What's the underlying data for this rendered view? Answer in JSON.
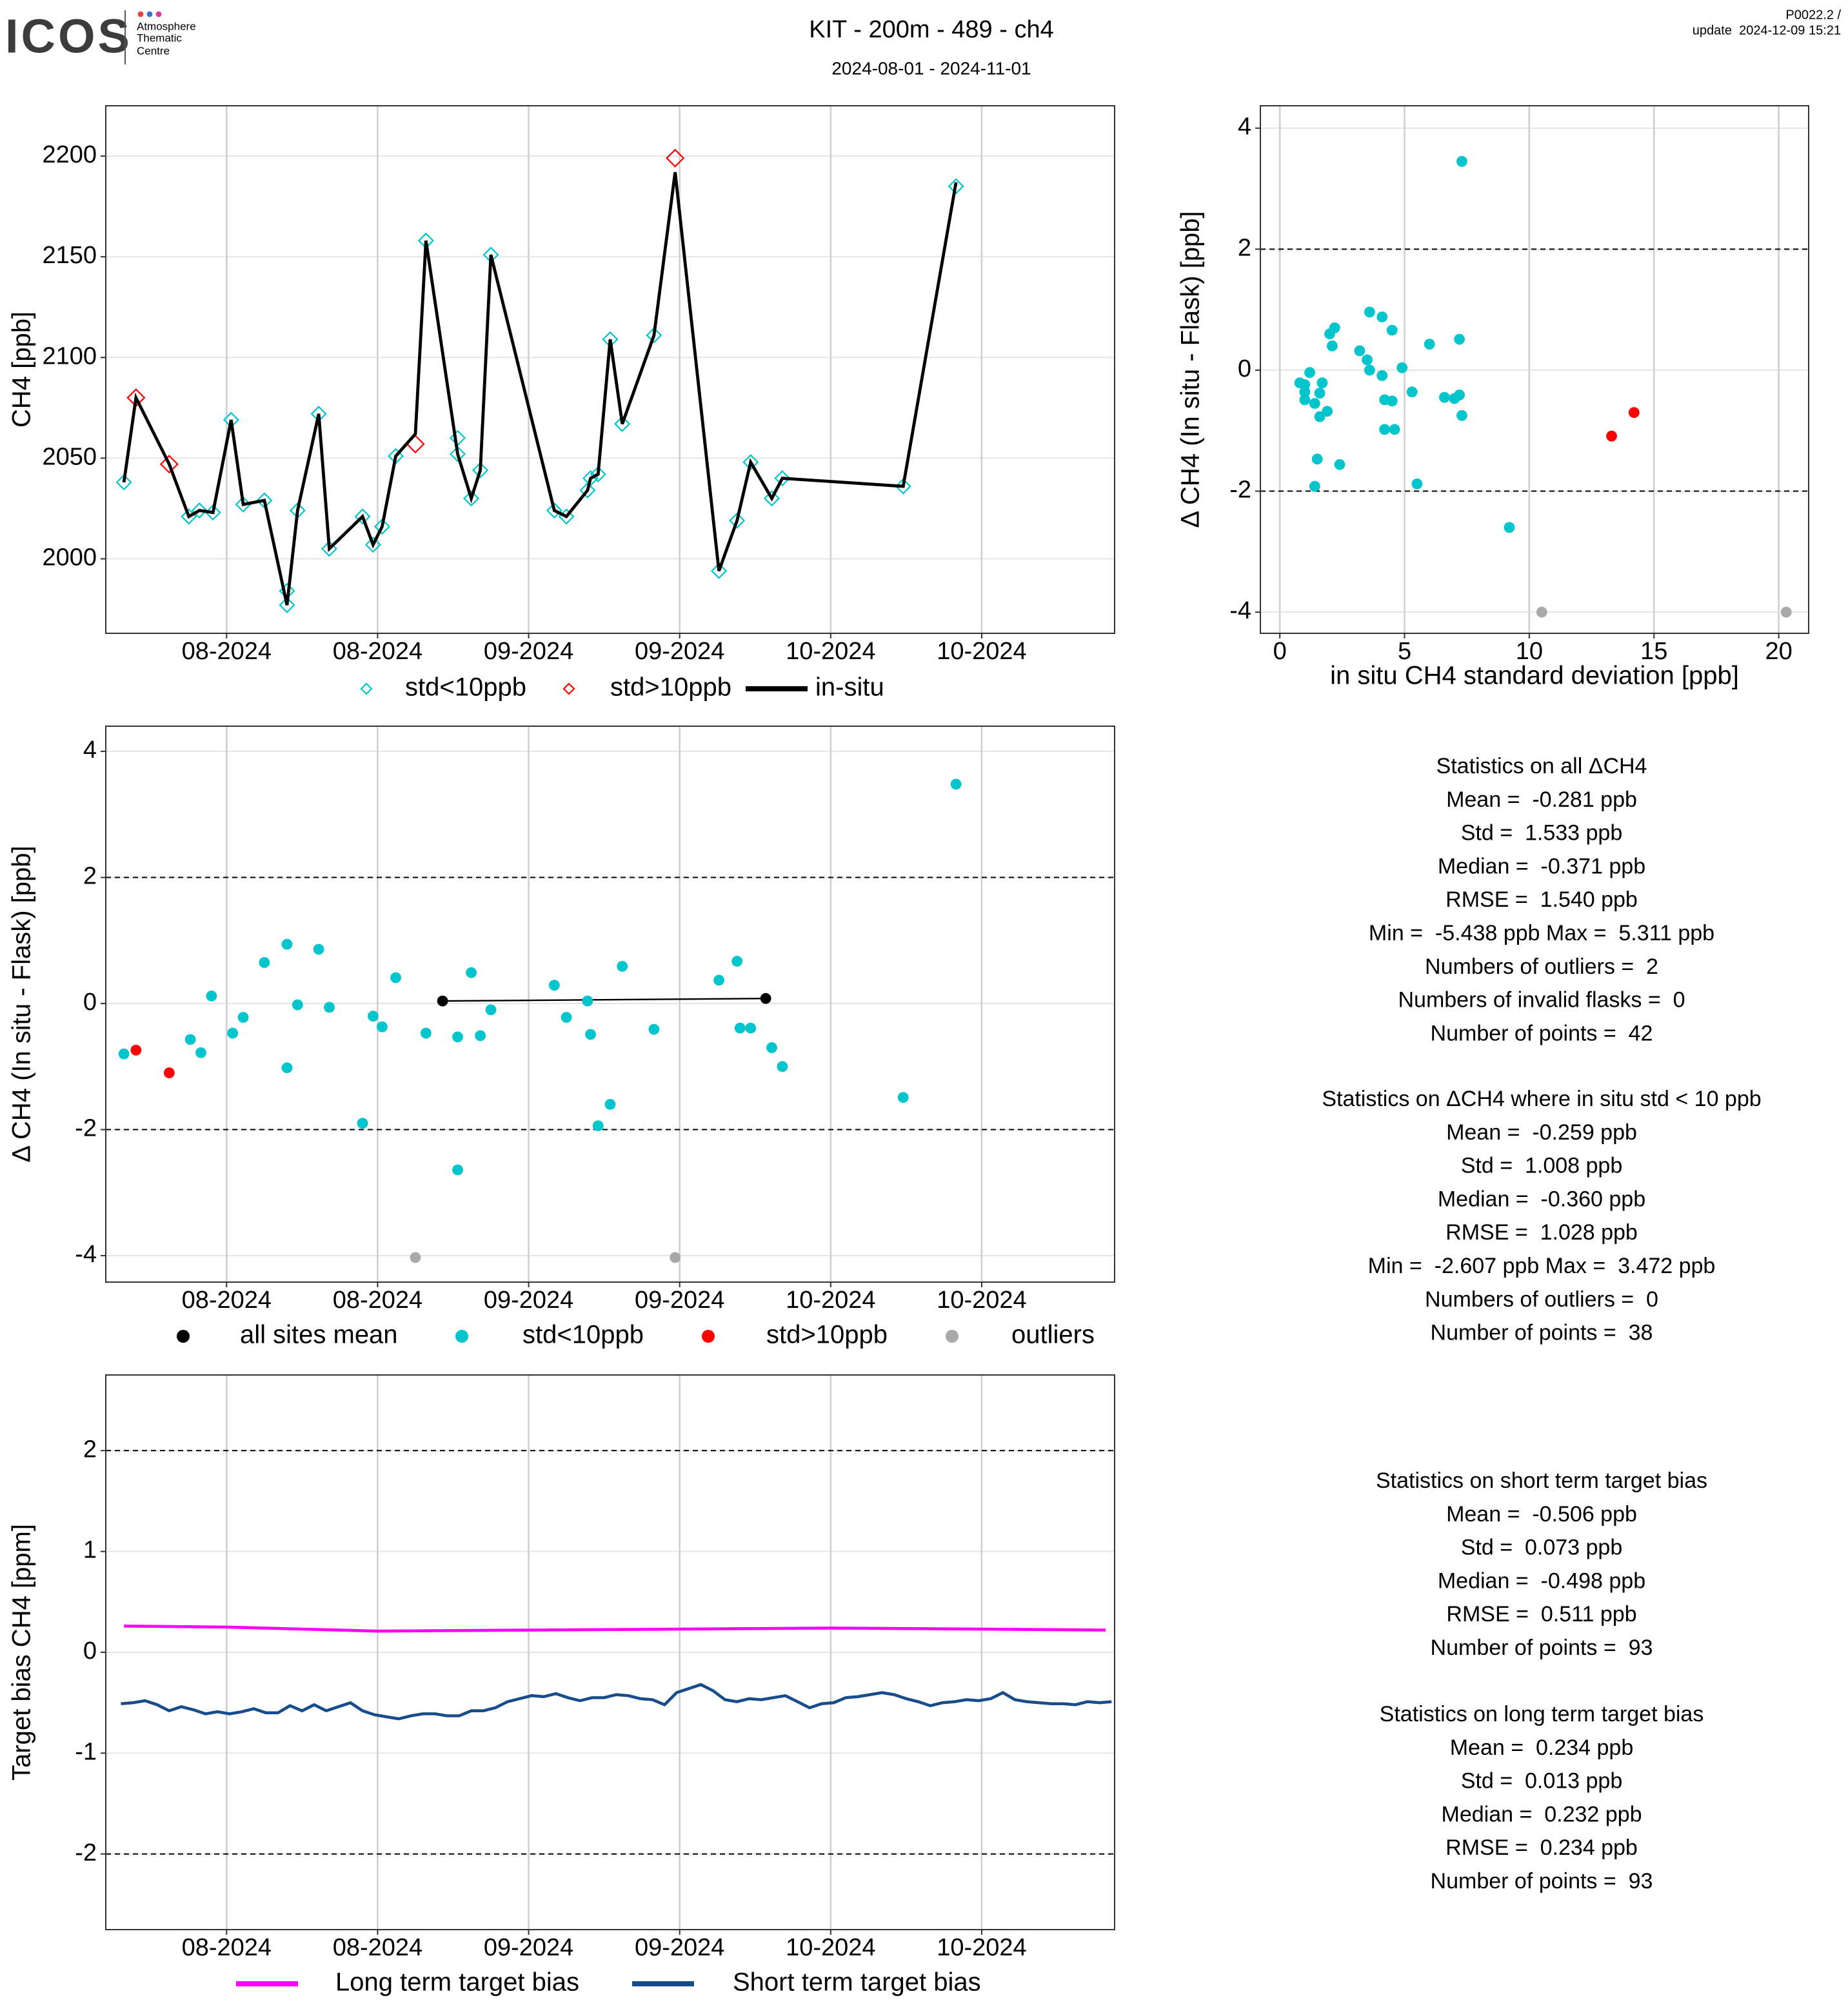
{
  "header": {
    "logo": "ICOS",
    "logo_caption": [
      "Atmosphere",
      "Thematic",
      "Centre"
    ],
    "title": "KIT - 200m - 489 - ch4",
    "subtitle": "2024-08-01 - 2024-11-01",
    "version": "P0022.2 /",
    "update": "update  2024-12-09 15:21"
  },
  "chart_data": [
    {
      "type": "line",
      "ylabel": "CH4 [ppb]",
      "xlim": [
        -0.8,
        5.88
      ],
      "ylim": [
        1963,
        2225
      ],
      "xticks": [
        {
          "value": 0,
          "label": "08-2024"
        },
        {
          "value": 1,
          "label": "08-2024"
        },
        {
          "value": 2,
          "label": "09-2024"
        },
        {
          "value": 3,
          "label": "09-2024"
        },
        {
          "value": 4,
          "label": "10-2024"
        },
        {
          "value": 5,
          "label": "10-2024"
        }
      ],
      "yticks": [
        2000,
        2050,
        2100,
        2150,
        2200
      ],
      "grid": true,
      "series": [
        {
          "name": "std<10ppb",
          "color": "#00c5cd",
          "mode": "diamonds",
          "x": [
            -0.68,
            -0.25,
            -0.18,
            -0.09,
            0.03,
            0.11,
            0.25,
            0.4,
            0.4,
            0.47,
            0.61,
            0.68,
            0.9,
            0.97,
            1.03,
            1.12,
            1.32,
            1.53,
            1.53,
            1.62,
            1.68,
            1.75,
            2.17,
            2.25,
            2.39,
            2.41,
            2.46,
            2.54,
            2.62,
            2.83,
            3.26,
            3.38,
            3.47,
            3.61,
            3.68,
            4.48,
            4.83
          ],
          "values": [
            2038,
            2021,
            2024,
            2023,
            2069,
            2027,
            2029,
            1984,
            1977,
            2024,
            2072,
            2005,
            2021,
            2007,
            2016,
            2051,
            2158,
            2060,
            2052,
            2030,
            2044,
            2151,
            2024,
            2021,
            2034,
            2040,
            2042,
            2109,
            2067,
            2111,
            1994,
            2019,
            2048,
            2030,
            2040,
            2036,
            2185
          ]
        },
        {
          "name": "std>10ppb",
          "color": "#ff0000",
          "mode": "diamonds",
          "x": [
            -0.6,
            -0.38,
            1.25,
            2.97
          ],
          "values": [
            2080,
            2047,
            2057,
            2199
          ]
        },
        {
          "name": "in-situ",
          "color": "#000000",
          "mode": "lines",
          "x": [
            -0.68,
            -0.6,
            -0.38,
            -0.25,
            -0.18,
            -0.09,
            0.03,
            0.11,
            0.25,
            0.4,
            0.47,
            0.61,
            0.68,
            0.9,
            0.97,
            1.03,
            1.12,
            1.25,
            1.32,
            1.53,
            1.62,
            1.68,
            1.75,
            2.17,
            2.25,
            2.39,
            2.41,
            2.46,
            2.54,
            2.62,
            2.83,
            2.97,
            3.26,
            3.38,
            3.47,
            3.61,
            3.68,
            4.48,
            4.83
          ],
          "values": [
            2038,
            2080,
            2047,
            2021,
            2024,
            2023,
            2069,
            2027,
            2029,
            1977,
            2024,
            2072,
            2005,
            2021,
            2007,
            2016,
            2051,
            2062,
            2158,
            2052,
            2030,
            2044,
            2151,
            2024,
            2021,
            2034,
            2040,
            2042,
            2109,
            2067,
            2111,
            2192,
            1994,
            2019,
            2048,
            2030,
            2040,
            2036,
            2187
          ]
        }
      ]
    },
    {
      "type": "scatter",
      "ylabel": "Δ CH4 (In situ - Flask) [ppb]",
      "xlabel": "in situ CH4 standard deviation [ppb]",
      "xlim": [
        -0.78,
        21.2
      ],
      "ylim": [
        -4.35,
        4.37
      ],
      "xticks": [
        0,
        5,
        10,
        15,
        20
      ],
      "yticks": [
        -4,
        -2,
        0,
        2,
        4
      ],
      "grid": true,
      "hlines": [
        2,
        -2
      ],
      "series": [
        {
          "color": "#00c5cd",
          "mode": "points",
          "x": [
            7.3,
            3.6,
            4.1,
            4.5,
            2.2,
            2.0,
            2.1,
            3.2,
            3.5,
            3.6,
            4.9,
            6.0,
            7.2,
            1.2,
            0.8,
            1.0,
            1.7,
            1.0,
            1.6,
            1.0,
            1.4,
            1.9,
            1.6,
            4.1,
            4.2,
            4.5,
            5.3,
            6.6,
            7.0,
            7.2,
            7.3,
            4.2,
            4.6,
            1.5,
            2.4,
            5.5,
            1.4,
            9.2
          ],
          "values": [
            3.45,
            0.96,
            0.88,
            0.66,
            0.7,
            0.6,
            0.4,
            0.32,
            0.17,
            0,
            0.04,
            0.43,
            0.51,
            -0.04,
            -0.21,
            -0.24,
            -0.21,
            -0.36,
            -0.38,
            -0.49,
            -0.55,
            -0.68,
            -0.77,
            -0.09,
            -0.49,
            -0.51,
            -0.36,
            -0.45,
            -0.47,
            -0.41,
            -0.75,
            -0.98,
            -0.98,
            -1.47,
            -1.56,
            -1.88,
            -1.92,
            -2.6
          ]
        },
        {
          "color": "#ff0000",
          "mode": "points",
          "x": [
            13.3,
            14.2
          ],
          "values": [
            -1.09,
            -0.7
          ]
        },
        {
          "color": "#a9a9a9",
          "mode": "points",
          "x": [
            10.5,
            20.3
          ],
          "values": [
            -4.0,
            -4.0
          ]
        }
      ]
    },
    {
      "type": "scatter",
      "ylabel": "Δ CH4 (In situ - Flask) [ppb]",
      "xlim": [
        -0.8,
        5.88
      ],
      "ylim": [
        -4.42,
        4.4
      ],
      "xticks": [
        {
          "value": 0,
          "label": "08-2024"
        },
        {
          "value": 1,
          "label": "08-2024"
        },
        {
          "value": 2,
          "label": "09-2024"
        },
        {
          "value": 3,
          "label": "09-2024"
        },
        {
          "value": 4,
          "label": "10-2024"
        },
        {
          "value": 5,
          "label": "10-2024"
        }
      ],
      "yticks": [
        -4,
        -2,
        0,
        2,
        4
      ],
      "grid": true,
      "hlines": [
        2,
        -2
      ],
      "series": [
        {
          "name": "all sites mean",
          "color": "#000000",
          "mode": "lines+points",
          "x": [
            1.43,
            3.57
          ],
          "values": [
            0.04,
            0.08
          ]
        },
        {
          "name": "std<10ppb",
          "color": "#00c5cd",
          "mode": "points",
          "x": [
            -0.68,
            -0.24,
            -0.17,
            -0.1,
            0.04,
            0.11,
            0.25,
            0.4,
            0.4,
            0.47,
            0.61,
            0.68,
            0.9,
            0.97,
            1.03,
            1.12,
            1.32,
            1.53,
            1.53,
            1.62,
            1.68,
            1.75,
            2.17,
            2.25,
            2.39,
            2.41,
            2.46,
            2.54,
            2.62,
            2.83,
            3.26,
            3.38,
            3.4,
            3.47,
            3.61,
            3.68,
            4.48,
            4.83
          ],
          "values": [
            -0.8,
            -0.57,
            -0.78,
            0.12,
            -0.47,
            -0.22,
            0.65,
            0.94,
            -1.02,
            -0.02,
            0.86,
            -0.06,
            -1.9,
            -0.2,
            -0.37,
            0.41,
            -0.47,
            -0.53,
            -2.64,
            0.49,
            -0.51,
            -0.1,
            0.29,
            -0.22,
            0.04,
            -0.49,
            -1.94,
            -1.6,
            0.59,
            -0.41,
            0.37,
            0.67,
            -0.39,
            -0.39,
            -0.7,
            -1.0,
            -1.49,
            3.48
          ]
        },
        {
          "name": "std>10ppb",
          "color": "#ff0000",
          "mode": "points",
          "x": [
            -0.6,
            -0.38
          ],
          "values": [
            -0.74,
            -1.1
          ]
        },
        {
          "name": "outliers",
          "color": "#a9a9a9",
          "mode": "points",
          "x": [
            1.25,
            2.97
          ],
          "values": [
            -4.03,
            -4.03
          ]
        }
      ]
    },
    {
      "type": "line",
      "ylabel": "Target bias CH4 [ppm]",
      "xlim": [
        -0.8,
        5.88
      ],
      "ylim": [
        -2.75,
        2.75
      ],
      "xticks": [
        {
          "value": 0,
          "label": "08-2024"
        },
        {
          "value": 1,
          "label": "08-2024"
        },
        {
          "value": 2,
          "label": "09-2024"
        },
        {
          "value": 3,
          "label": "09-2024"
        },
        {
          "value": 4,
          "label": "10-2024"
        },
        {
          "value": 5,
          "label": "10-2024"
        }
      ],
      "yticks": [
        -2,
        -1,
        0,
        1,
        2
      ],
      "grid": true,
      "hlines": [
        2,
        -2
      ],
      "series": [
        {
          "name": "Long term target bias",
          "color": "#ff00ff",
          "mode": "lines",
          "x": [
            -0.68,
            0.0,
            1.0,
            2.0,
            3.0,
            4.0,
            5.0,
            5.82
          ],
          "values": [
            0.26,
            0.25,
            0.21,
            0.22,
            0.23,
            0.24,
            0.23,
            0.22
          ]
        },
        {
          "name": "Short term target bias",
          "color": "#174c8c",
          "mode": "lines",
          "x": [
            -0.7,
            -0.62,
            -0.54,
            -0.46,
            -0.38,
            -0.3,
            -0.22,
            -0.14,
            -0.06,
            0.02,
            0.1,
            0.18,
            0.26,
            0.34,
            0.42,
            0.5,
            0.58,
            0.66,
            0.74,
            0.82,
            0.9,
            0.98,
            1.06,
            1.14,
            1.22,
            1.3,
            1.38,
            1.46,
            1.54,
            1.62,
            1.7,
            1.78,
            1.86,
            1.94,
            2.02,
            2.1,
            2.18,
            2.26,
            2.34,
            2.42,
            2.5,
            2.58,
            2.66,
            2.74,
            2.82,
            2.9,
            2.98,
            3.06,
            3.14,
            3.22,
            3.3,
            3.38,
            3.46,
            3.54,
            3.62,
            3.7,
            3.78,
            3.86,
            3.94,
            4.02,
            4.1,
            4.18,
            4.26,
            4.34,
            4.42,
            4.5,
            4.58,
            4.66,
            4.74,
            4.82,
            4.9,
            4.98,
            5.06,
            5.14,
            5.22,
            5.3,
            5.38,
            5.46,
            5.54,
            5.62,
            5.7,
            5.78,
            5.86
          ],
          "values": [
            -0.51,
            -0.5,
            -0.48,
            -0.52,
            -0.58,
            -0.54,
            -0.57,
            -0.61,
            -0.59,
            -0.61,
            -0.59,
            -0.56,
            -0.6,
            -0.6,
            -0.53,
            -0.58,
            -0.52,
            -0.58,
            -0.54,
            -0.5,
            -0.58,
            -0.62,
            -0.64,
            -0.66,
            -0.63,
            -0.61,
            -0.61,
            -0.63,
            -0.63,
            -0.58,
            -0.58,
            -0.55,
            -0.49,
            -0.46,
            -0.43,
            -0.44,
            -0.41,
            -0.45,
            -0.48,
            -0.45,
            -0.45,
            -0.42,
            -0.43,
            -0.46,
            -0.47,
            -0.52,
            -0.4,
            -0.36,
            -0.32,
            -0.38,
            -0.47,
            -0.49,
            -0.46,
            -0.47,
            -0.45,
            -0.43,
            -0.49,
            -0.55,
            -0.51,
            -0.5,
            -0.45,
            -0.44,
            -0.42,
            -0.4,
            -0.42,
            -0.46,
            -0.49,
            -0.53,
            -0.5,
            -0.49,
            -0.47,
            -0.48,
            -0.46,
            -0.4,
            -0.47,
            -0.49,
            -0.5,
            -0.51,
            -0.51,
            -0.52,
            -0.49,
            -0.5,
            -0.49
          ]
        }
      ]
    }
  ],
  "stats": [
    {
      "title": "Statistics on all ΔCH4",
      "lines": [
        "Mean =  -0.281 ppb",
        "Std =  1.533 ppb",
        "Median =  -0.371 ppb",
        "RMSE =  1.540 ppb",
        "Min =  -5.438 ppb Max =  5.311 ppb",
        "Numbers of outliers =  2",
        "Numbers of invalid flasks =  0",
        "Number of points =  42"
      ]
    },
    {
      "title": "Statistics on ΔCH4 where in situ std < 10 ppb",
      "lines": [
        "Mean =  -0.259 ppb",
        "Std =  1.008 ppb",
        "Median =  -0.360 ppb",
        "RMSE =  1.028 ppb",
        "Min =  -2.607 ppb Max =  3.472 ppb",
        "Numbers of outliers =  0",
        "Number of points =  38"
      ]
    },
    {
      "title": "Statistics on short term target bias",
      "lines": [
        "Mean =  -0.506 ppb",
        "Std =  0.073 ppb",
        "Median =  -0.498 ppb",
        "RMSE =  0.511 ppb",
        "Number of points =  93"
      ]
    },
    {
      "title": "Statistics on long term target bias",
      "lines": [
        "Mean =  0.234 ppb",
        "Std =  0.013 ppb",
        "Median =  0.232 ppb",
        "RMSE =  0.234 ppb",
        "Number of points =  93"
      ]
    }
  ]
}
